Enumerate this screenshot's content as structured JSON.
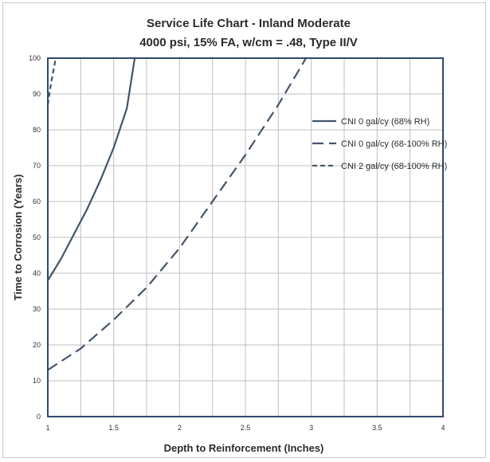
{
  "chart_data": {
    "type": "line",
    "title": "Service Life Chart -  Inland Moderate",
    "subtitle": "4000 psi, 15% FA, w/cm = .48, Type II/V",
    "xlabel": "Depth to Reinforcement (Inches)",
    "ylabel": "Time to Corrosion (Years)",
    "xlim": [
      1,
      4
    ],
    "ylim": [
      0,
      100
    ],
    "x_ticks": [
      "1",
      "1.5",
      "2",
      "2.5",
      "3",
      "3.5",
      "4"
    ],
    "y_ticks": [
      "0",
      "10",
      "20",
      "30",
      "40",
      "50",
      "60",
      "70",
      "80",
      "90",
      "100"
    ],
    "grid": true,
    "legend_position": "right",
    "series": [
      {
        "name": "CNI 0 gal/cy (68% RH)",
        "dash": "solid",
        "x": [
          1.0,
          1.1,
          1.2,
          1.3,
          1.4,
          1.5,
          1.6,
          1.66
        ],
        "y": [
          38,
          44,
          51,
          58,
          66,
          75,
          86,
          100
        ]
      },
      {
        "name": "CNI 0 gal/cy (68-100% RH)",
        "dash": "long-dash",
        "x": [
          1.0,
          1.25,
          1.5,
          1.75,
          2.0,
          2.25,
          2.5,
          2.75,
          2.96
        ],
        "y": [
          13,
          19,
          27,
          36,
          47,
          60,
          73,
          87,
          100
        ]
      },
      {
        "name": "CNI 2 gal/cy (68-100% RH)",
        "dash": "short-dash",
        "x": [
          1.0,
          1.02,
          1.04,
          1.06
        ],
        "y": [
          87,
          92,
          96,
          100
        ]
      }
    ],
    "colors": {
      "line": "#44546a",
      "plot_border": "#2f4a6d",
      "grid": "#bfbfbf"
    }
  }
}
